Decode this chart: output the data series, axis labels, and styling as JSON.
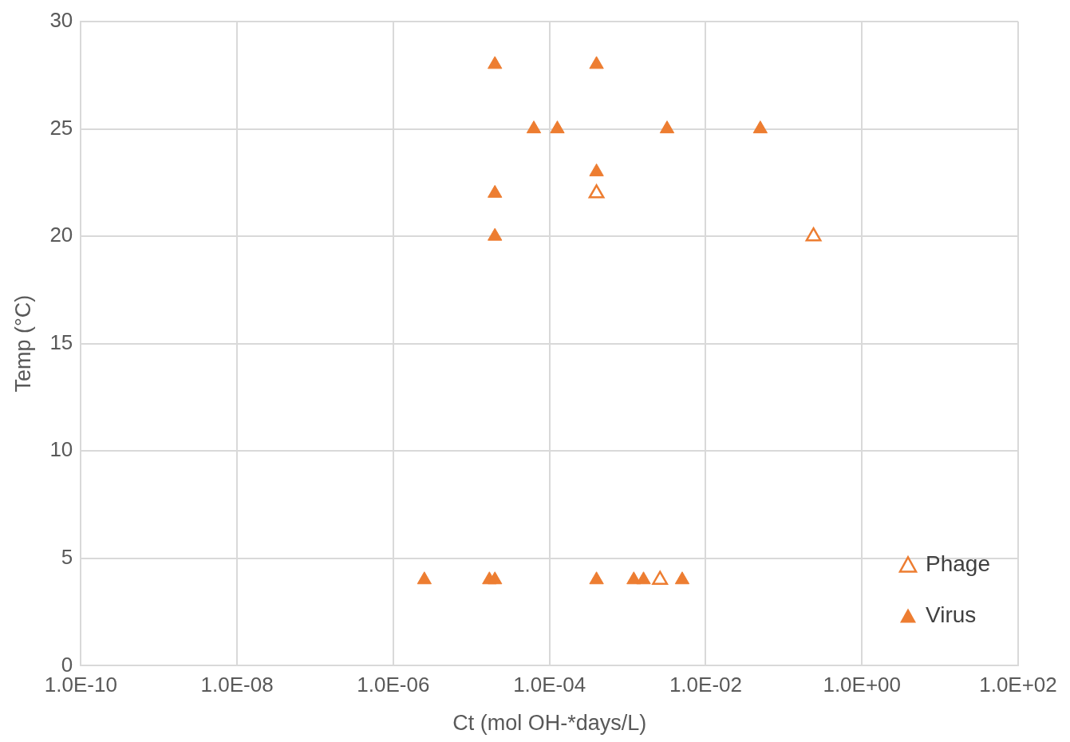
{
  "chart_data": {
    "type": "scatter",
    "xlabel": "Ct (mol OH-*days/L)",
    "ylabel": "Temp (°C)",
    "log": "x",
    "marker": "triangle",
    "grid": true,
    "legend": "bottom right",
    "xlim": [
      1e-10,
      100
    ],
    "xticks": [
      {
        "value": 1e-10,
        "label": "1.0E-10"
      },
      {
        "value": 1e-08,
        "label": "1.0E-08"
      },
      {
        "value": 1e-06,
        "label": "1.0E-06"
      },
      {
        "value": 0.0001,
        "label": "1.0E-04"
      },
      {
        "value": 0.01,
        "label": "1.0E-02"
      },
      {
        "value": 1,
        "label": "1.0E+00"
      },
      {
        "value": 100,
        "label": "1.0E+02"
      }
    ],
    "ylim": [
      0,
      30
    ],
    "yticks": [
      0,
      5,
      10,
      15,
      20,
      25,
      30
    ],
    "series": [
      {
        "name": "Phage",
        "color": "#ed7d31",
        "marker": "triangle-open",
        "x": [
          0.0004,
          0.24,
          0.0026
        ],
        "values": [
          22,
          20,
          4
        ]
      },
      {
        "name": "Virus",
        "color": "#ed7d31",
        "x": [
          2e-05,
          0.0004,
          6.3e-05,
          0.000126,
          0.0032,
          0.05,
          0.0004,
          2e-05,
          2e-05,
          2.5e-06,
          1.7e-05,
          2e-05,
          0.0004,
          0.0012,
          0.0016,
          0.005
        ],
        "values": [
          28,
          28,
          25,
          25,
          25,
          25,
          23,
          22,
          20,
          4,
          4,
          4,
          4,
          4,
          4,
          4
        ]
      }
    ]
  }
}
